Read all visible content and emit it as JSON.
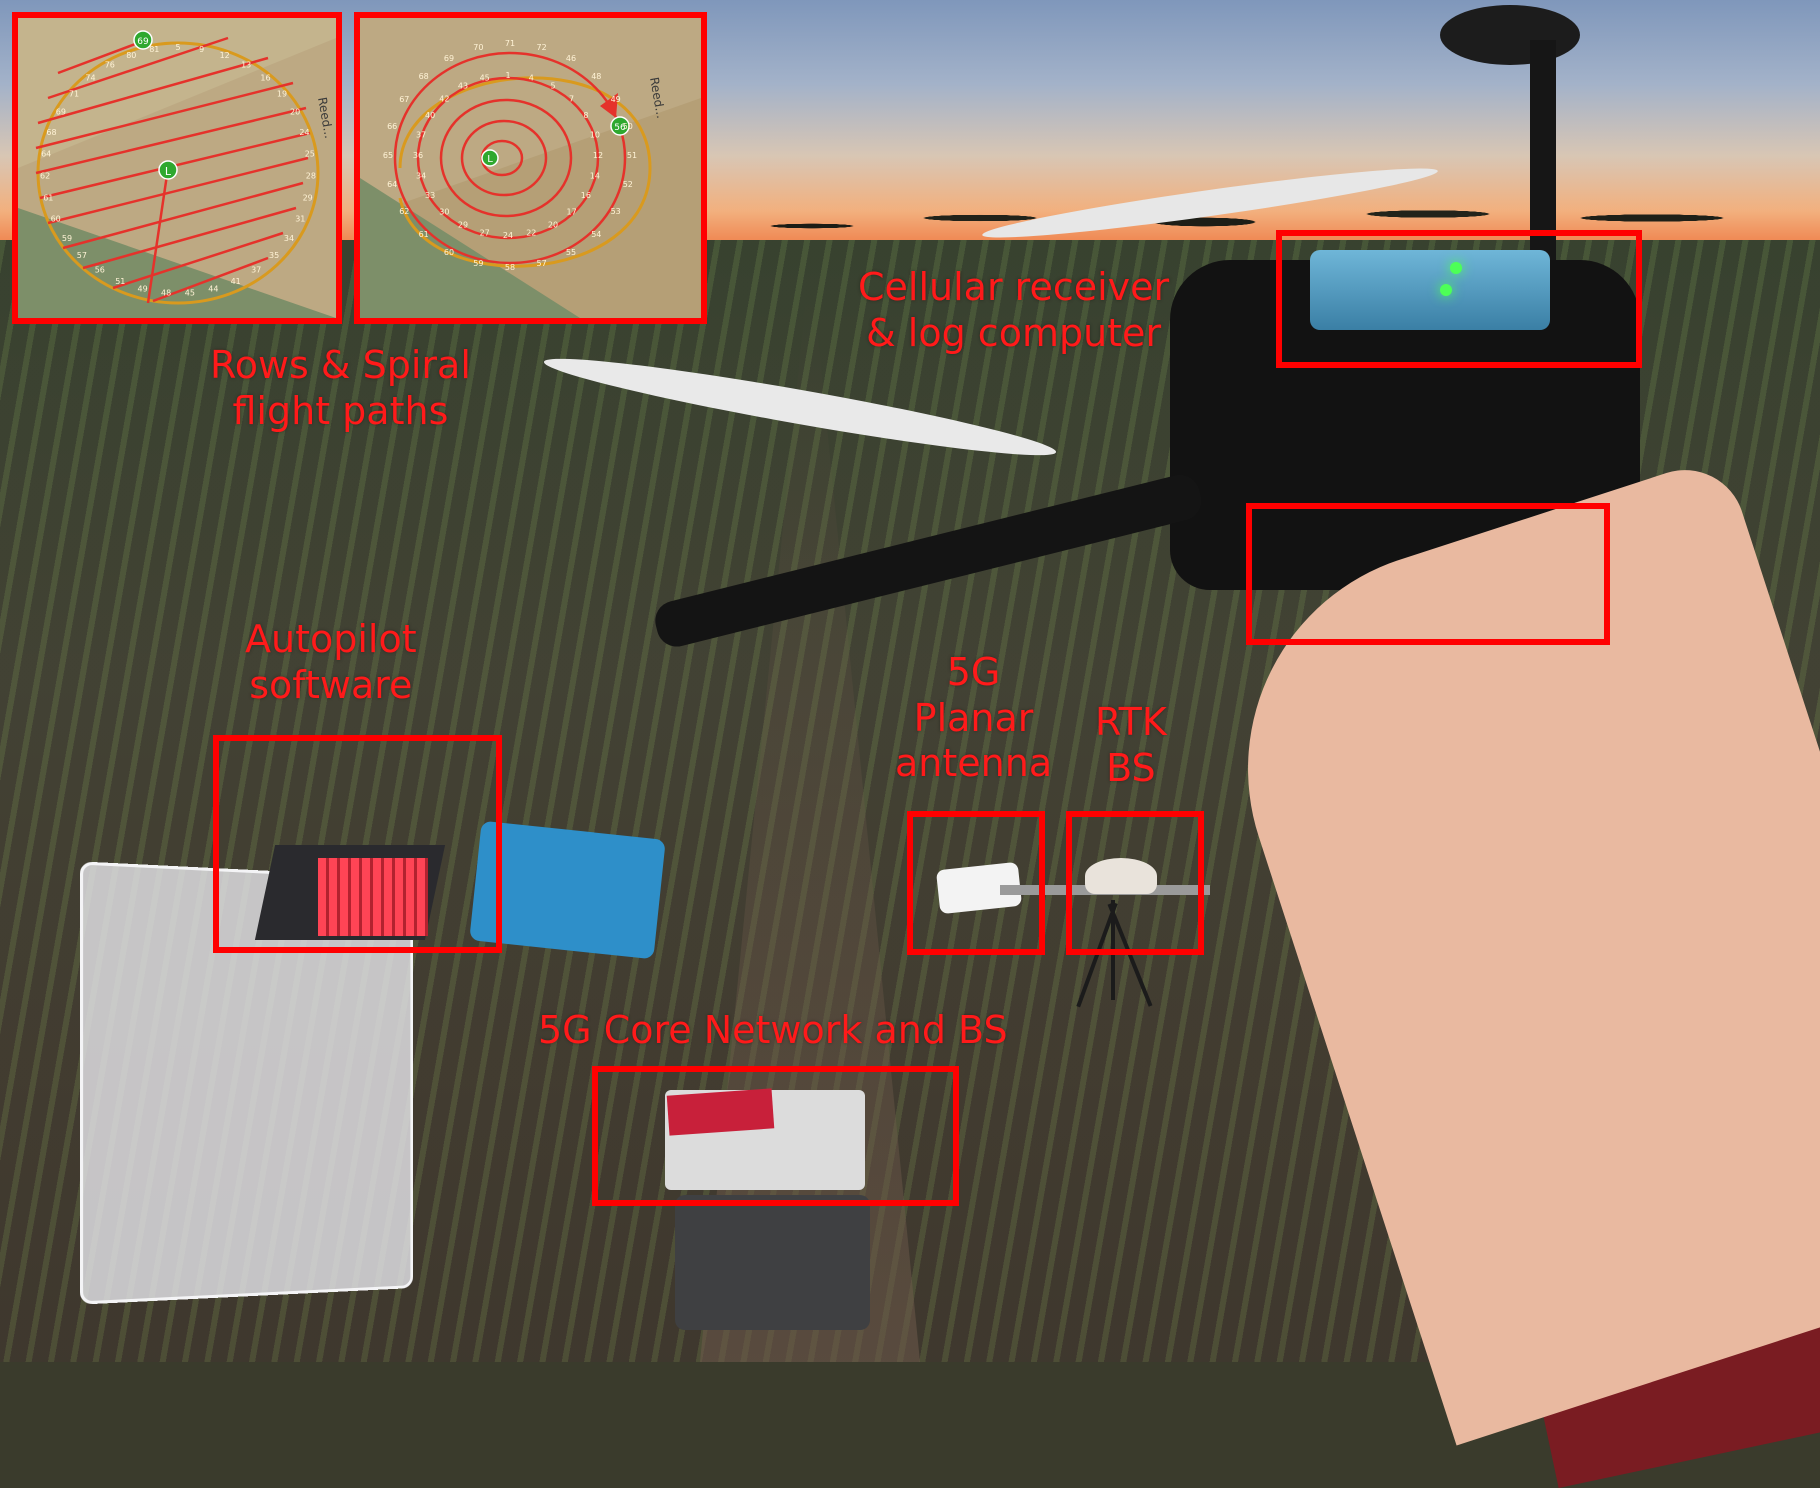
{
  "annotations": {
    "rows_spiral": "Rows & Spiral\nflight paths",
    "cellular_receiver": "Cellular receiver\n& log computer",
    "autopilot": "Autopilot\nsoftware",
    "planar_antenna": "5G\nPlanar\nantenna",
    "rtk_bs": "RTK\nBS",
    "core_network": "5G Core Network and BS"
  },
  "maps": {
    "rows": {
      "start_marker": "L",
      "end_marker": "69",
      "waypoint_numbers": [
        "5",
        "9",
        "12",
        "13",
        "16",
        "19",
        "20",
        "24",
        "25",
        "28",
        "29",
        "31",
        "34",
        "35",
        "37",
        "41",
        "44",
        "45",
        "48",
        "49",
        "51",
        "56",
        "57",
        "59",
        "60",
        "61",
        "62",
        "64",
        "68",
        "69",
        "71",
        "74",
        "76",
        "80",
        "81"
      ],
      "road_label": "Reed..."
    },
    "spiral": {
      "start_marker": "L",
      "end_marker": "56",
      "waypoint_numbers": [
        "1",
        "4",
        "5",
        "7",
        "8",
        "10",
        "12",
        "14",
        "16",
        "17",
        "20",
        "22",
        "24",
        "27",
        "29",
        "30",
        "33",
        "34",
        "36",
        "37",
        "40",
        "42",
        "43",
        "45",
        "46",
        "48",
        "49",
        "50",
        "51",
        "52",
        "53",
        "54",
        "55",
        "57",
        "58",
        "59",
        "60",
        "61",
        "62",
        "64",
        "65",
        "66",
        "67",
        "68",
        "69",
        "70",
        "71",
        "72"
      ],
      "road_label": "Reed..."
    }
  },
  "colors": {
    "annotation": "#ff0000",
    "path": "#e5322b",
    "perimeter": "#d99a1e",
    "marker": "#2fa82f"
  }
}
